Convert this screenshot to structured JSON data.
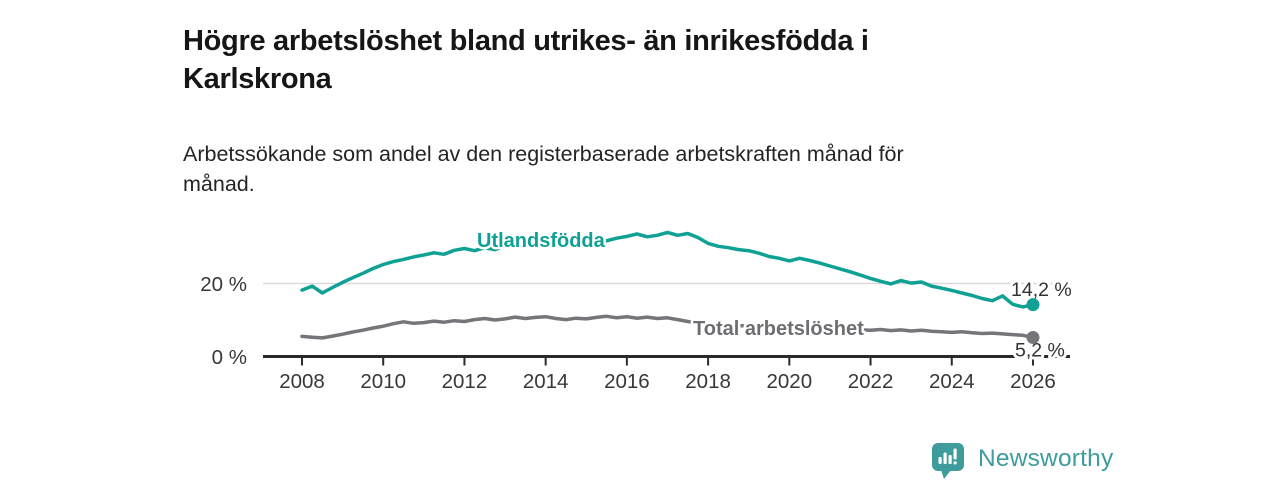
{
  "header": {
    "title": "Högre arbetslöshet bland utrikes- än inrikesfödda i\nKarlskrona",
    "subtitle": "Arbetssökande som andel av den registerbaserade arbetskraften månad för\nmånad."
  },
  "colors": {
    "teal": "#0fa194",
    "gray": "#76767a",
    "gray_label": "#6e6e72",
    "axis": "#2a2a2a",
    "grid": "#d9d9d9",
    "tick_text": "#383838",
    "end_label_text": "#333333",
    "logo": "#3f9c9c"
  },
  "chart_data": {
    "type": "line",
    "title": "",
    "xlabel": "",
    "ylabel": "",
    "x_start": 2008,
    "x_step": 0.25,
    "x_end": 2026,
    "ylim": [
      0,
      40
    ],
    "grid": "y-20-only",
    "legend_position": "inline-labels",
    "x_ticks": [
      {
        "value": 2008,
        "label": "2008"
      },
      {
        "value": 2010,
        "label": "2010"
      },
      {
        "value": 2012,
        "label": "2012"
      },
      {
        "value": 2014,
        "label": "2014"
      },
      {
        "value": 2016,
        "label": "2016"
      },
      {
        "value": 2018,
        "label": "2018"
      },
      {
        "value": 2020,
        "label": "2020"
      },
      {
        "value": 2022,
        "label": "2022"
      },
      {
        "value": 2024,
        "label": "2024"
      },
      {
        "value": 2026,
        "label": "2026"
      }
    ],
    "y_ticks": [
      {
        "value": 0,
        "label": "0 %"
      },
      {
        "value": 20,
        "label": "20 %"
      }
    ],
    "series": [
      {
        "name": "Utlandsfödda",
        "color": "#0fa194",
        "end_label": "14,2 %",
        "end_value": 14.2,
        "values": [
          18.2,
          19.3,
          17.4,
          18.9,
          20.3,
          21.6,
          22.8,
          24.1,
          25.2,
          26.0,
          26.6,
          27.3,
          27.8,
          28.4,
          28.0,
          29.1,
          29.6,
          29.0,
          29.8,
          29.3,
          30.2,
          30.8,
          30.3,
          31.0,
          31.3,
          30.7,
          31.4,
          31.9,
          31.5,
          32.2,
          31.7,
          32.4,
          32.9,
          33.6,
          32.8,
          33.2,
          34.0,
          33.2,
          33.7,
          32.6,
          31.0,
          30.2,
          29.8,
          29.3,
          29.0,
          28.3,
          27.4,
          26.9,
          26.2,
          26.9,
          26.3,
          25.6,
          24.8,
          24.0,
          23.2,
          22.3,
          21.4,
          20.6,
          19.9,
          20.8,
          20.1,
          20.4,
          19.3,
          18.7,
          18.1,
          17.4,
          16.7,
          15.9,
          15.3,
          16.6,
          14.3,
          13.6,
          14.2
        ]
      },
      {
        "name": "Total arbetslöshet",
        "color": "#76767a",
        "end_label": "5,2 %",
        "end_value": 5.2,
        "values": [
          5.5,
          5.3,
          5.1,
          5.6,
          6.1,
          6.7,
          7.2,
          7.8,
          8.3,
          9.0,
          9.5,
          9.1,
          9.3,
          9.7,
          9.4,
          9.8,
          9.6,
          10.1,
          10.4,
          10.0,
          10.3,
          10.8,
          10.4,
          10.7,
          10.9,
          10.4,
          10.1,
          10.5,
          10.3,
          10.7,
          11.0,
          10.6,
          10.9,
          10.5,
          10.8,
          10.4,
          10.6,
          10.1,
          9.6,
          9.2,
          8.9,
          8.6,
          8.4,
          8.5,
          8.3,
          8.1,
          8.0,
          7.9,
          8.0,
          8.6,
          8.3,
          8.1,
          7.9,
          7.6,
          7.4,
          7.3,
          7.2,
          7.4,
          7.1,
          7.3,
          7.0,
          7.2,
          6.9,
          6.8,
          6.6,
          6.8,
          6.5,
          6.3,
          6.4,
          6.2,
          6.0,
          5.8,
          5.2
        ]
      }
    ]
  },
  "footer": {
    "brand": "Newsworthy",
    "brand_icon": "bar-chart-speech-bubble-icon"
  }
}
